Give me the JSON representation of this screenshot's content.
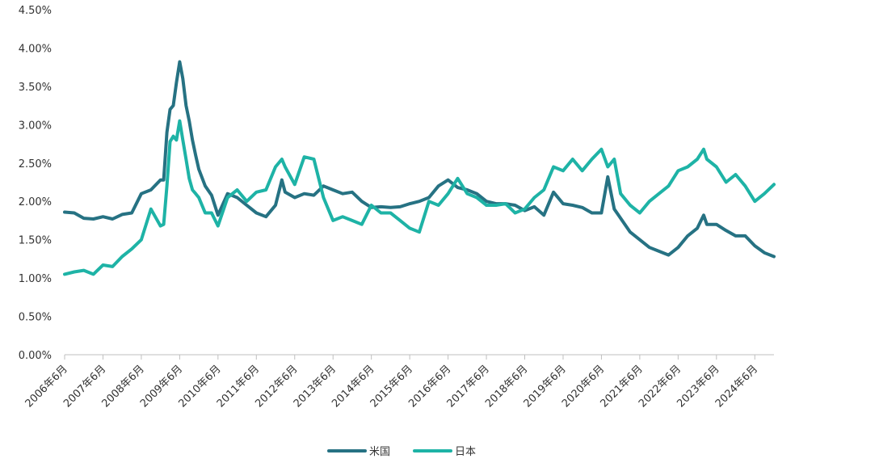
{
  "chart_data": {
    "type": "line",
    "title": "",
    "xlabel": "",
    "ylabel": "",
    "ylim": [
      0,
      4.5
    ],
    "y_ticks": [
      "0.00%",
      "0.50%",
      "1.00%",
      "1.50%",
      "2.00%",
      "2.50%",
      "3.00%",
      "3.50%",
      "4.00%",
      "4.50%"
    ],
    "x_tick_labels": [
      "2006年6月",
      "2007年6月",
      "2008年6月",
      "2009年6月",
      "2010年6月",
      "2011年6月",
      "2012年6月",
      "2013年6月",
      "2014年6月",
      "2015年6月",
      "2016年6月",
      "2017年6月",
      "2018年6月",
      "2019年6月",
      "2020年6月",
      "2021年6月",
      "2022年6月",
      "2023年6月",
      "2024年6月"
    ],
    "x_start": "2006-06",
    "x_end": "2024-12",
    "grid": false,
    "legend_position": "bottom-center",
    "series": [
      {
        "name": "米国",
        "color": "#267283",
        "points": [
          [
            "2006-06",
            1.86
          ],
          [
            "2006-09",
            1.85
          ],
          [
            "2006-12",
            1.78
          ],
          [
            "2007-03",
            1.77
          ],
          [
            "2007-06",
            1.8
          ],
          [
            "2007-09",
            1.77
          ],
          [
            "2007-12",
            1.83
          ],
          [
            "2008-03",
            1.85
          ],
          [
            "2008-06",
            2.1
          ],
          [
            "2008-09",
            2.15
          ],
          [
            "2008-12",
            2.28
          ],
          [
            "2009-01",
            2.28
          ],
          [
            "2009-02",
            2.9
          ],
          [
            "2009-03",
            3.2
          ],
          [
            "2009-04",
            3.25
          ],
          [
            "2009-05",
            3.55
          ],
          [
            "2009-06",
            3.82
          ],
          [
            "2009-07",
            3.6
          ],
          [
            "2009-08",
            3.25
          ],
          [
            "2009-09",
            3.05
          ],
          [
            "2009-10",
            2.8
          ],
          [
            "2009-11",
            2.6
          ],
          [
            "2009-12",
            2.42
          ],
          [
            "2010-02",
            2.2
          ],
          [
            "2010-04",
            2.08
          ],
          [
            "2010-06",
            1.82
          ],
          [
            "2010-09",
            2.1
          ],
          [
            "2010-12",
            2.05
          ],
          [
            "2011-03",
            1.95
          ],
          [
            "2011-06",
            1.85
          ],
          [
            "2011-09",
            1.8
          ],
          [
            "2011-12",
            1.95
          ],
          [
            "2012-02",
            2.28
          ],
          [
            "2012-03",
            2.12
          ],
          [
            "2012-06",
            2.05
          ],
          [
            "2012-09",
            2.1
          ],
          [
            "2012-12",
            2.08
          ],
          [
            "2013-03",
            2.2
          ],
          [
            "2013-06",
            2.15
          ],
          [
            "2013-09",
            2.1
          ],
          [
            "2013-12",
            2.12
          ],
          [
            "2014-03",
            2.0
          ],
          [
            "2014-06",
            1.92
          ],
          [
            "2014-09",
            1.93
          ],
          [
            "2014-12",
            1.92
          ],
          [
            "2015-03",
            1.93
          ],
          [
            "2015-06",
            1.97
          ],
          [
            "2015-09",
            2.0
          ],
          [
            "2015-12",
            2.05
          ],
          [
            "2016-03",
            2.2
          ],
          [
            "2016-06",
            2.28
          ],
          [
            "2016-09",
            2.18
          ],
          [
            "2016-12",
            2.15
          ],
          [
            "2017-03",
            2.1
          ],
          [
            "2017-06",
            2.0
          ],
          [
            "2017-09",
            1.97
          ],
          [
            "2017-12",
            1.97
          ],
          [
            "2018-03",
            1.95
          ],
          [
            "2018-06",
            1.88
          ],
          [
            "2018-09",
            1.93
          ],
          [
            "2018-12",
            1.82
          ],
          [
            "2019-03",
            2.12
          ],
          [
            "2019-06",
            1.97
          ],
          [
            "2019-09",
            1.95
          ],
          [
            "2019-12",
            1.92
          ],
          [
            "2020-03",
            1.85
          ],
          [
            "2020-06",
            1.85
          ],
          [
            "2020-08",
            2.32
          ],
          [
            "2020-10",
            1.9
          ],
          [
            "2020-12",
            1.78
          ],
          [
            "2021-03",
            1.6
          ],
          [
            "2021-06",
            1.5
          ],
          [
            "2021-09",
            1.4
          ],
          [
            "2021-12",
            1.35
          ],
          [
            "2022-03",
            1.3
          ],
          [
            "2022-06",
            1.4
          ],
          [
            "2022-09",
            1.55
          ],
          [
            "2022-12",
            1.65
          ],
          [
            "2023-02",
            1.82
          ],
          [
            "2023-03",
            1.7
          ],
          [
            "2023-06",
            1.7
          ],
          [
            "2023-09",
            1.62
          ],
          [
            "2023-12",
            1.55
          ],
          [
            "2024-03",
            1.55
          ],
          [
            "2024-06",
            1.42
          ],
          [
            "2024-09",
            1.33
          ],
          [
            "2024-12",
            1.28
          ]
        ]
      },
      {
        "name": "日本",
        "color": "#1eb3a6",
        "points": [
          [
            "2006-06",
            1.05
          ],
          [
            "2006-09",
            1.08
          ],
          [
            "2006-12",
            1.1
          ],
          [
            "2007-03",
            1.05
          ],
          [
            "2007-06",
            1.17
          ],
          [
            "2007-09",
            1.15
          ],
          [
            "2007-12",
            1.28
          ],
          [
            "2008-03",
            1.38
          ],
          [
            "2008-06",
            1.5
          ],
          [
            "2008-09",
            1.9
          ],
          [
            "2008-12",
            1.68
          ],
          [
            "2009-01",
            1.7
          ],
          [
            "2009-02",
            2.2
          ],
          [
            "2009-03",
            2.78
          ],
          [
            "2009-04",
            2.85
          ],
          [
            "2009-05",
            2.8
          ],
          [
            "2009-06",
            3.05
          ],
          [
            "2009-07",
            2.8
          ],
          [
            "2009-08",
            2.55
          ],
          [
            "2009-09",
            2.3
          ],
          [
            "2009-10",
            2.15
          ],
          [
            "2009-11",
            2.1
          ],
          [
            "2009-12",
            2.05
          ],
          [
            "2010-02",
            1.85
          ],
          [
            "2010-04",
            1.85
          ],
          [
            "2010-06",
            1.68
          ],
          [
            "2010-09",
            2.05
          ],
          [
            "2010-12",
            2.15
          ],
          [
            "2011-03",
            2.0
          ],
          [
            "2011-06",
            2.12
          ],
          [
            "2011-09",
            2.15
          ],
          [
            "2011-12",
            2.45
          ],
          [
            "2012-02",
            2.55
          ],
          [
            "2012-03",
            2.45
          ],
          [
            "2012-06",
            2.22
          ],
          [
            "2012-09",
            2.58
          ],
          [
            "2012-12",
            2.55
          ],
          [
            "2013-03",
            2.05
          ],
          [
            "2013-06",
            1.75
          ],
          [
            "2013-09",
            1.8
          ],
          [
            "2013-12",
            1.75
          ],
          [
            "2014-03",
            1.7
          ],
          [
            "2014-06",
            1.95
          ],
          [
            "2014-09",
            1.85
          ],
          [
            "2014-12",
            1.85
          ],
          [
            "2015-03",
            1.75
          ],
          [
            "2015-06",
            1.65
          ],
          [
            "2015-09",
            1.6
          ],
          [
            "2015-12",
            2.0
          ],
          [
            "2016-03",
            1.95
          ],
          [
            "2016-06",
            2.1
          ],
          [
            "2016-09",
            2.3
          ],
          [
            "2016-12",
            2.1
          ],
          [
            "2017-03",
            2.05
          ],
          [
            "2017-06",
            1.95
          ],
          [
            "2017-09",
            1.95
          ],
          [
            "2017-12",
            1.97
          ],
          [
            "2018-03",
            1.85
          ],
          [
            "2018-06",
            1.9
          ],
          [
            "2018-09",
            2.05
          ],
          [
            "2018-12",
            2.15
          ],
          [
            "2019-03",
            2.45
          ],
          [
            "2019-06",
            2.4
          ],
          [
            "2019-09",
            2.55
          ],
          [
            "2019-12",
            2.4
          ],
          [
            "2020-03",
            2.55
          ],
          [
            "2020-06",
            2.68
          ],
          [
            "2020-08",
            2.45
          ],
          [
            "2020-10",
            2.55
          ],
          [
            "2020-12",
            2.1
          ],
          [
            "2021-03",
            1.95
          ],
          [
            "2021-06",
            1.85
          ],
          [
            "2021-09",
            2.0
          ],
          [
            "2021-12",
            2.1
          ],
          [
            "2022-03",
            2.2
          ],
          [
            "2022-06",
            2.4
          ],
          [
            "2022-09",
            2.45
          ],
          [
            "2022-12",
            2.55
          ],
          [
            "2023-02",
            2.68
          ],
          [
            "2023-03",
            2.55
          ],
          [
            "2023-06",
            2.45
          ],
          [
            "2023-09",
            2.25
          ],
          [
            "2023-12",
            2.35
          ],
          [
            "2024-03",
            2.2
          ],
          [
            "2024-06",
            2.0
          ],
          [
            "2024-09",
            2.1
          ],
          [
            "2024-12",
            2.22
          ]
        ]
      }
    ]
  }
}
